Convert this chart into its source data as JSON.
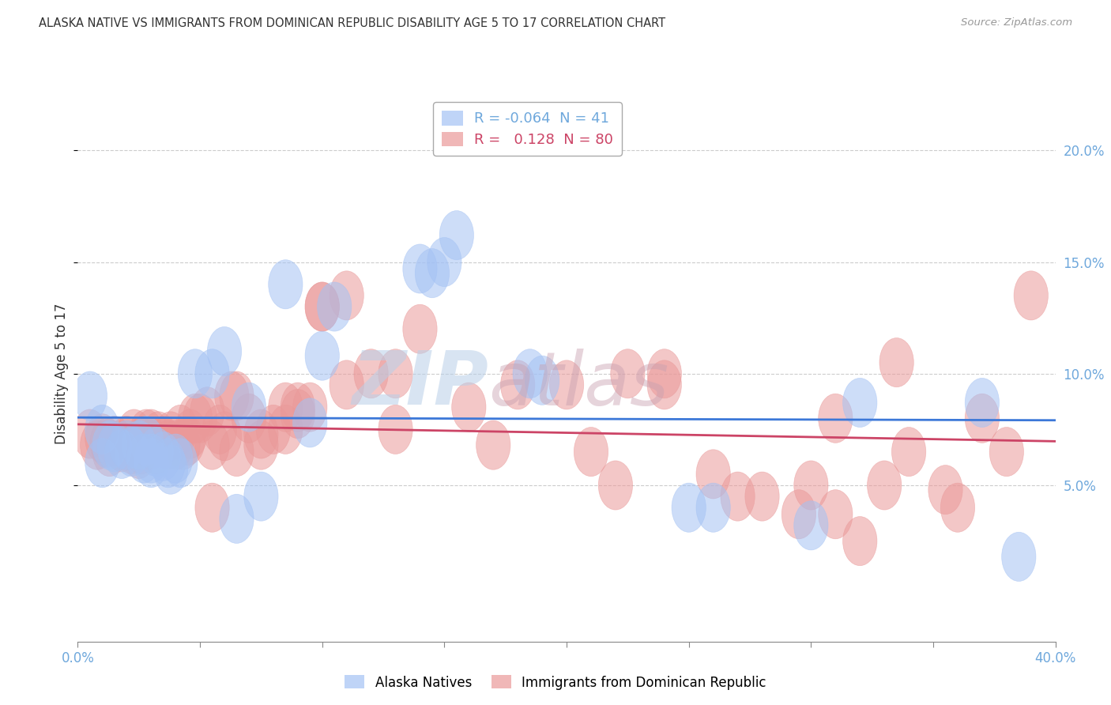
{
  "title": "ALASKA NATIVE VS IMMIGRANTS FROM DOMINICAN REPUBLIC DISABILITY AGE 5 TO 17 CORRELATION CHART",
  "source": "Source: ZipAtlas.com",
  "ylabel": "Disability Age 5 to 17",
  "ytick_labels": [
    "5.0%",
    "10.0%",
    "15.0%",
    "20.0%"
  ],
  "ytick_values": [
    0.05,
    0.1,
    0.15,
    0.2
  ],
  "xmin": 0.0,
  "xmax": 0.4,
  "ymin": -0.02,
  "ymax": 0.22,
  "legend_blue_r": "-0.064",
  "legend_blue_n": "41",
  "legend_pink_r": "0.128",
  "legend_pink_n": "80",
  "watermark_zip": "ZIP",
  "watermark_atlas": "atlas",
  "blue_color": "#a4c2f4",
  "pink_color": "#ea9999",
  "line_blue_color": "#3c78d8",
  "line_pink_color": "#cc4466",
  "blue_scatter_x": [
    0.005,
    0.01,
    0.01,
    0.013,
    0.015,
    0.018,
    0.02,
    0.022,
    0.025,
    0.027,
    0.028,
    0.03,
    0.03,
    0.032,
    0.035,
    0.037,
    0.038,
    0.04,
    0.042,
    0.048,
    0.055,
    0.06,
    0.065,
    0.07,
    0.075,
    0.085,
    0.095,
    0.1,
    0.105,
    0.14,
    0.145,
    0.15,
    0.155,
    0.185,
    0.19,
    0.25,
    0.26,
    0.3,
    0.32,
    0.37,
    0.385
  ],
  "blue_scatter_y": [
    0.09,
    0.075,
    0.06,
    0.068,
    0.067,
    0.064,
    0.068,
    0.065,
    0.068,
    0.062,
    0.07,
    0.062,
    0.06,
    0.065,
    0.063,
    0.06,
    0.057,
    0.062,
    0.06,
    0.1,
    0.1,
    0.11,
    0.035,
    0.085,
    0.045,
    0.14,
    0.078,
    0.108,
    0.13,
    0.147,
    0.145,
    0.15,
    0.162,
    0.1,
    0.097,
    0.04,
    0.04,
    0.032,
    0.087,
    0.087,
    0.018
  ],
  "pink_scatter_x": [
    0.005,
    0.008,
    0.01,
    0.012,
    0.013,
    0.015,
    0.017,
    0.018,
    0.02,
    0.02,
    0.022,
    0.023,
    0.025,
    0.026,
    0.027,
    0.028,
    0.03,
    0.03,
    0.032,
    0.033,
    0.035,
    0.037,
    0.038,
    0.04,
    0.042,
    0.043,
    0.045,
    0.046,
    0.048,
    0.05,
    0.053,
    0.055,
    0.058,
    0.06,
    0.063,
    0.065,
    0.07,
    0.075,
    0.08,
    0.085,
    0.09,
    0.095,
    0.1,
    0.11,
    0.12,
    0.13,
    0.14,
    0.16,
    0.18,
    0.2,
    0.22,
    0.24,
    0.27,
    0.28,
    0.295,
    0.31,
    0.335,
    0.34,
    0.355,
    0.36,
    0.37,
    0.38,
    0.055,
    0.065,
    0.075,
    0.085,
    0.09,
    0.1,
    0.11,
    0.13,
    0.17,
    0.21,
    0.225,
    0.24,
    0.26,
    0.3,
    0.31,
    0.32,
    0.33,
    0.39
  ],
  "pink_scatter_y": [
    0.073,
    0.068,
    0.071,
    0.069,
    0.065,
    0.07,
    0.068,
    0.067,
    0.07,
    0.068,
    0.066,
    0.073,
    0.064,
    0.066,
    0.07,
    0.073,
    0.068,
    0.073,
    0.066,
    0.072,
    0.07,
    0.068,
    0.072,
    0.068,
    0.075,
    0.068,
    0.07,
    0.073,
    0.08,
    0.08,
    0.083,
    0.068,
    0.075,
    0.072,
    0.09,
    0.09,
    0.08,
    0.073,
    0.075,
    0.075,
    0.085,
    0.085,
    0.13,
    0.135,
    0.1,
    0.1,
    0.12,
    0.085,
    0.095,
    0.095,
    0.05,
    0.095,
    0.045,
    0.045,
    0.037,
    0.08,
    0.105,
    0.065,
    0.048,
    0.04,
    0.08,
    0.065,
    0.04,
    0.065,
    0.068,
    0.085,
    0.082,
    0.13,
    0.095,
    0.075,
    0.068,
    0.065,
    0.1,
    0.1,
    0.055,
    0.05,
    0.037,
    0.025,
    0.05,
    0.135
  ]
}
